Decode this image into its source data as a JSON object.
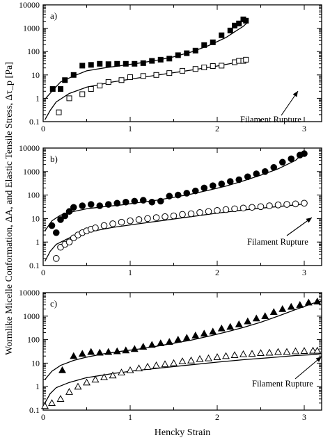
{
  "chart_data": {
    "type": "scatter",
    "ylabel": "Wormlike Micelle Conformation, ΔA, and Elastic Tensile Stress, Δτ_p [Pa]",
    "xlabel": "Hencky Strain",
    "x_ticks": [
      "0",
      "1",
      "2",
      "3"
    ],
    "y_ticks": [
      "0.1",
      "1",
      "10",
      "100",
      "1000",
      "10000"
    ],
    "y_scale": "log",
    "panels": [
      {
        "label": "a)",
        "annotation": "Filament Rupture",
        "xlim": [
          0,
          3.2
        ],
        "ylim": [
          0.1,
          10000
        ],
        "series": [
          {
            "marker": "filled-square",
            "x": [
              0.11,
              0.2,
              0.25,
              0.35,
              0.45,
              0.55,
              0.65,
              0.75,
              0.85,
              0.95,
              1.05,
              1.15,
              1.25,
              1.35,
              1.45,
              1.55,
              1.65,
              1.75,
              1.85,
              1.95,
              2.05,
              2.15,
              2.2,
              2.25,
              2.3,
              2.33
            ],
            "y": [
              2.5,
              2.5,
              6,
              10,
              25,
              27,
              30,
              29,
              30,
              30,
              30,
              32,
              40,
              45,
              50,
              70,
              85,
              110,
              190,
              250,
              500,
              800,
              1300,
              1600,
              2400,
              2100
            ]
          },
          {
            "marker": "open-square",
            "x": [
              0.18,
              0.3,
              0.45,
              0.55,
              0.65,
              0.75,
              0.9,
              1.0,
              1.15,
              1.3,
              1.45,
              1.6,
              1.75,
              1.85,
              1.95,
              2.05,
              2.2,
              2.25,
              2.3,
              2.33
            ],
            "y": [
              0.25,
              1.0,
              1.5,
              2.5,
              3.5,
              5,
              6,
              8,
              9,
              10,
              12,
              15,
              18,
              21,
              24,
              25,
              35,
              40,
              40,
              45
            ]
          }
        ],
        "fits": [
          {
            "x": [
              0.02,
              0.1,
              0.2,
              0.35,
              0.5,
              0.7,
              0.9,
              1.1,
              1.3,
              1.5,
              1.7,
              1.9,
              2.1,
              2.2,
              2.3,
              2.35
            ],
            "y": [
              0.9,
              2.0,
              5.0,
              9.0,
              15,
              20,
              25,
              32,
              42,
              60,
              95,
              180,
              400,
              700,
              1200,
              1800
            ]
          },
          {
            "x": [
              0.02,
              0.08,
              0.15,
              0.3,
              0.5,
              0.8,
              1.1,
              1.4,
              1.7,
              2.0,
              2.2,
              2.35
            ],
            "y": [
              0.12,
              0.3,
              0.7,
              1.6,
              3.0,
              5.0,
              7.5,
              11,
              16,
              24,
              33,
              45
            ]
          }
        ]
      },
      {
        "label": "b)",
        "annotation": "Filament Rupture",
        "xlim": [
          0,
          3.2
        ],
        "ylim": [
          0.1,
          10000
        ],
        "series": [
          {
            "marker": "filled-circle",
            "x": [
              0.1,
              0.15,
              0.2,
              0.25,
              0.3,
              0.35,
              0.45,
              0.55,
              0.65,
              0.75,
              0.85,
              0.95,
              1.05,
              1.15,
              1.25,
              1.35,
              1.45,
              1.55,
              1.65,
              1.75,
              1.85,
              1.95,
              2.05,
              2.15,
              2.25,
              2.35,
              2.45,
              2.55,
              2.65,
              2.75,
              2.85,
              2.95,
              3.0
            ],
            "y": [
              5,
              2.5,
              9,
              13,
              20,
              30,
              35,
              40,
              35,
              40,
              45,
              50,
              55,
              60,
              50,
              55,
              90,
              100,
              120,
              150,
              200,
              250,
              300,
              380,
              450,
              600,
              800,
              1000,
              1500,
              2500,
              3500,
              5000,
              5800
            ]
          },
          {
            "marker": "open-circle",
            "x": [
              0.15,
              0.2,
              0.25,
              0.3,
              0.35,
              0.4,
              0.45,
              0.5,
              0.55,
              0.6,
              0.7,
              0.8,
              0.9,
              1.0,
              1.1,
              1.2,
              1.3,
              1.4,
              1.5,
              1.6,
              1.7,
              1.8,
              1.9,
              2.0,
              2.1,
              2.2,
              2.3,
              2.4,
              2.5,
              2.6,
              2.7,
              2.8,
              2.9,
              3.0
            ],
            "y": [
              0.2,
              0.6,
              0.8,
              1.0,
              1.5,
              2.0,
              2.5,
              3.0,
              3.5,
              4.0,
              5,
              6,
              7,
              8,
              9,
              10,
              11,
              12,
              13,
              15,
              16,
              18,
              20,
              22,
              24,
              26,
              28,
              30,
              32,
              35,
              38,
              40,
              42,
              45
            ]
          }
        ],
        "fits": [
          {
            "x": [
              0.02,
              0.1,
              0.2,
              0.35,
              0.5,
              0.7,
              0.9,
              1.1,
              1.3,
              1.5,
              1.7,
              1.9,
              2.1,
              2.3,
              2.5,
              2.7,
              2.9,
              3.0
            ],
            "y": [
              3.0,
              8.0,
              14,
              20,
              26,
              32,
              38,
              48,
              60,
              80,
              110,
              160,
              240,
              400,
              700,
              1300,
              3000,
              6500
            ]
          },
          {
            "x": [
              0.02,
              0.08,
              0.15,
              0.3,
              0.5,
              0.8,
              1.1,
              1.4,
              1.7,
              2.0,
              2.3,
              2.6,
              2.9,
              3.0
            ],
            "y": [
              0.15,
              0.4,
              0.8,
              1.5,
              2.6,
              4.2,
              6.0,
              8.5,
              12,
              17,
              23,
              30,
              38,
              42
            ]
          }
        ]
      },
      {
        "label": "c)",
        "annotation": "Filament Rupture",
        "xlim": [
          0,
          3.2
        ],
        "ylim": [
          0.1,
          10000
        ],
        "series": [
          {
            "marker": "filled-triangle",
            "x": [
              0.22,
              0.35,
              0.45,
              0.55,
              0.65,
              0.75,
              0.85,
              0.95,
              1.05,
              1.15,
              1.25,
              1.35,
              1.45,
              1.55,
              1.65,
              1.75,
              1.85,
              1.95,
              2.05,
              2.15,
              2.25,
              2.35,
              2.45,
              2.55,
              2.65,
              2.75,
              2.85,
              2.95,
              3.05,
              3.15
            ],
            "y": [
              5,
              20,
              25,
              30,
              28,
              30,
              32,
              35,
              40,
              50,
              60,
              70,
              80,
              100,
              120,
              150,
              180,
              220,
              300,
              350,
              450,
              600,
              800,
              1000,
              1500,
              2000,
              2500,
              3000,
              3800,
              4200
            ]
          },
          {
            "marker": "open-triangle",
            "x": [
              0.02,
              0.1,
              0.2,
              0.3,
              0.4,
              0.5,
              0.6,
              0.7,
              0.8,
              0.9,
              1.0,
              1.1,
              1.2,
              1.3,
              1.4,
              1.5,
              1.6,
              1.7,
              1.8,
              1.9,
              2.0,
              2.1,
              2.2,
              2.3,
              2.4,
              2.5,
              2.6,
              2.7,
              2.8,
              2.9,
              3.0,
              3.1,
              3.15
            ],
            "y": [
              0.15,
              0.2,
              0.3,
              0.6,
              1.0,
              1.5,
              2.0,
              2.5,
              3.0,
              4.0,
              5.0,
              6.0,
              7.0,
              8.0,
              9.0,
              10,
              12,
              13,
              15,
              16,
              18,
              20,
              22,
              24,
              25,
              27,
              28,
              30,
              30,
              32,
              33,
              34,
              34
            ]
          }
        ],
        "fits": [
          {
            "x": [
              0.02,
              0.1,
              0.2,
              0.35,
              0.5,
              0.7,
              0.9,
              1.1,
              1.3,
              1.5,
              1.7,
              1.9,
              2.1,
              2.3,
              2.5,
              2.7,
              2.9,
              3.1,
              3.2
            ],
            "y": [
              2.0,
              4.5,
              8.0,
              13,
              18,
              25,
              32,
              40,
              52,
              70,
              95,
              140,
              210,
              330,
              550,
              1000,
              1900,
              3500,
              4500
            ]
          },
          {
            "x": [
              0.02,
              0.08,
              0.15,
              0.3,
              0.5,
              0.8,
              1.1,
              1.4,
              1.7,
              2.0,
              2.3,
              2.6,
              2.9,
              3.1,
              3.2
            ],
            "y": [
              0.2,
              0.5,
              0.9,
              1.5,
              2.4,
              3.6,
              5.0,
              6.5,
              8.5,
              11,
              14,
              17,
              21,
              23,
              25
            ]
          }
        ]
      }
    ]
  }
}
